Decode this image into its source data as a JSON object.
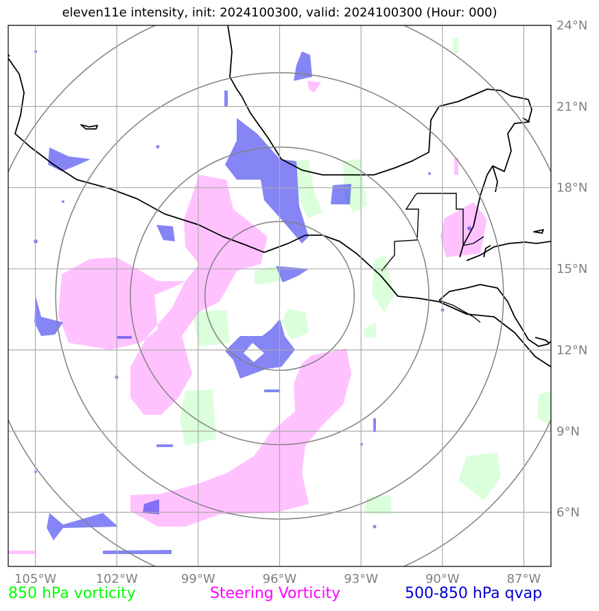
{
  "title": "eleven11e intensity, init: 2024100300, valid: 2024100300 (Hour: 000)",
  "map": {
    "lon_range": [
      -106,
      -86
    ],
    "lat_range": [
      4,
      24
    ],
    "center": {
      "lon": -96,
      "lat": 14
    },
    "range_rings_deg": [
      2.75,
      5.5,
      8.25,
      11
    ],
    "lon_ticks": [
      {
        "value": -105,
        "label": "105°W"
      },
      {
        "value": -102,
        "label": "102°W"
      },
      {
        "value": -99,
        "label": "99°W"
      },
      {
        "value": -96,
        "label": "96°W"
      },
      {
        "value": -93,
        "label": "93°W"
      },
      {
        "value": -90,
        "label": "90°W"
      },
      {
        "value": -87,
        "label": "87°W"
      }
    ],
    "lat_ticks": [
      {
        "value": 24,
        "label": "24°N"
      },
      {
        "value": 21,
        "label": "21°N"
      },
      {
        "value": 18,
        "label": "18°N"
      },
      {
        "value": 15,
        "label": "15°N"
      },
      {
        "value": 12,
        "label": "12°N"
      },
      {
        "value": 9,
        "label": "9°N"
      },
      {
        "value": 6,
        "label": "6°N"
      }
    ],
    "colors": {
      "vorticity_850": "#ccffcc",
      "steering_vorticity": "#ff99ff",
      "qvap": "#3333ee",
      "grid": "#aaaaaa",
      "rings": "#808080",
      "coast": "#000000"
    }
  },
  "legend": [
    {
      "label": "850 hPa vorticity",
      "color": "#00ff00"
    },
    {
      "label": "Steering Vorticity",
      "color": "#ff00ff"
    },
    {
      "label": "500-850 hPa qvap",
      "color": "#0000cc"
    }
  ]
}
